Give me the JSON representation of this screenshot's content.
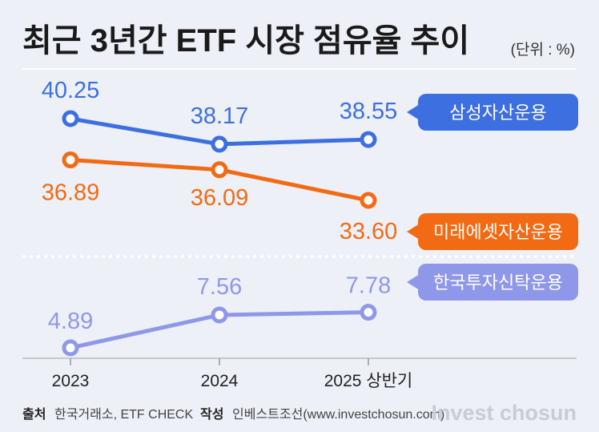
{
  "title": "최근 3년간 ETF 시장 점유율 추이",
  "unit": "(단위 : %)",
  "chart_data": {
    "type": "line",
    "x": [
      "2023",
      "2024",
      "2025 상반기"
    ],
    "series": [
      {
        "name": "삼성자산운용",
        "values": [
          40.25,
          38.17,
          38.55
        ],
        "labels": [
          "40.25",
          "38.17",
          "38.55"
        ],
        "color": "#3d6fe0"
      },
      {
        "name": "미래에셋자산운용",
        "values": [
          36.89,
          36.09,
          33.6
        ],
        "labels": [
          "36.89",
          "36.09",
          "33.60"
        ],
        "color": "#f26a14"
      },
      {
        "name": "한국투자신탁운용",
        "values": [
          4.89,
          7.56,
          7.78
        ],
        "labels": [
          "4.89",
          "7.56",
          "7.78"
        ],
        "color": "#8f98e8"
      }
    ],
    "axis_break": "dashed line between 미래에셋자산운용 and 한국투자신탁운용",
    "grid": false
  },
  "footer": {
    "source_label": "출처",
    "source_text": "한국거래소, ETF CHECK",
    "author_label": "작성",
    "author_text": "인베스트조선(www.investchosun.com)",
    "logo": "Invest chosun"
  }
}
